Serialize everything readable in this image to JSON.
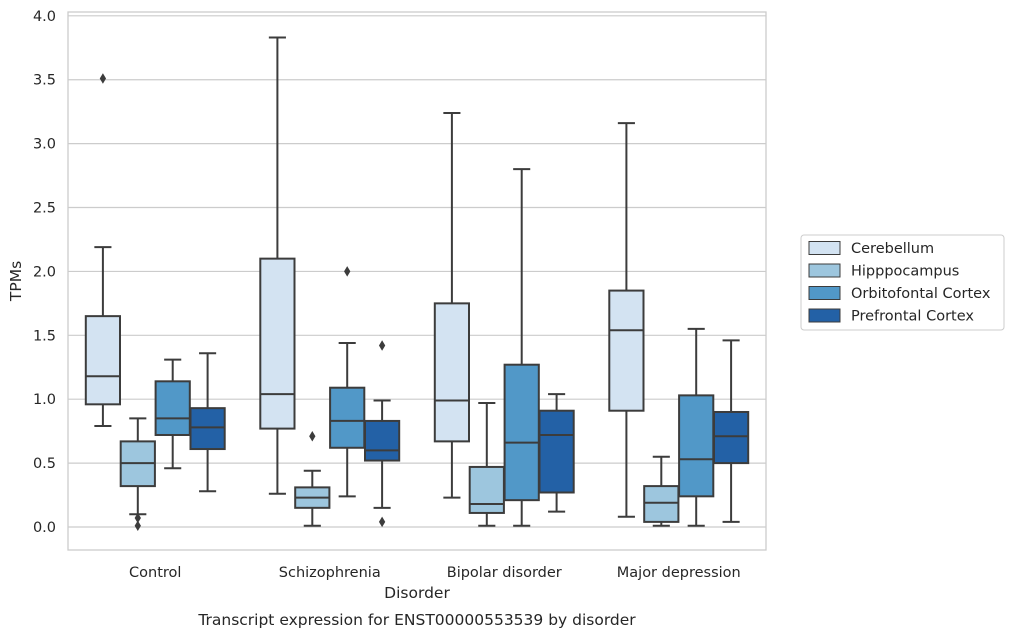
{
  "chart_data": {
    "type": "box",
    "title": "",
    "caption": "Transcript expression for ENST00000553539 by disorder",
    "xlabel": "Disorder",
    "ylabel": "TPMs",
    "ylim": [
      -0.18,
      4.03
    ],
    "yticks": [
      "0.0",
      "0.5",
      "1.0",
      "1.5",
      "2.0",
      "2.5",
      "3.0",
      "3.5",
      "4.0"
    ],
    "grid": "horizontal",
    "legend_position": "outside-right",
    "categories": [
      "Control",
      "Schizophrenia",
      "Bipolar disorder",
      "Major depression"
    ],
    "series": [
      {
        "name": "Cerebellum",
        "color": "#d3e3f2",
        "boxes": [
          {
            "whislo": 0.79,
            "q1": 0.96,
            "med": 1.18,
            "q3": 1.65,
            "whishi": 2.19,
            "fliers": [
              3.51
            ]
          },
          {
            "whislo": 0.26,
            "q1": 0.77,
            "med": 1.04,
            "q3": 2.1,
            "whishi": 3.83,
            "fliers": []
          },
          {
            "whislo": 0.23,
            "q1": 0.67,
            "med": 0.99,
            "q3": 1.75,
            "whishi": 3.24,
            "fliers": []
          },
          {
            "whislo": 0.08,
            "q1": 0.91,
            "med": 1.54,
            "q3": 1.85,
            "whishi": 3.16,
            "fliers": []
          }
        ]
      },
      {
        "name": "Hipppocampus",
        "color": "#9dc6de",
        "boxes": [
          {
            "whislo": 0.1,
            "q1": 0.32,
            "med": 0.5,
            "q3": 0.67,
            "whishi": 0.85,
            "fliers": [
              0.07,
              0.01
            ]
          },
          {
            "whislo": 0.01,
            "q1": 0.15,
            "med": 0.23,
            "q3": 0.31,
            "whishi": 0.44,
            "fliers": [
              0.71
            ]
          },
          {
            "whislo": 0.01,
            "q1": 0.11,
            "med": 0.18,
            "q3": 0.47,
            "whishi": 0.97,
            "fliers": []
          },
          {
            "whislo": 0.01,
            "q1": 0.04,
            "med": 0.19,
            "q3": 0.32,
            "whishi": 0.55,
            "fliers": []
          }
        ]
      },
      {
        "name": "Orbitofontal Cortex",
        "color": "#5198c8",
        "boxes": [
          {
            "whislo": 0.46,
            "q1": 0.72,
            "med": 0.85,
            "q3": 1.14,
            "whishi": 1.31,
            "fliers": []
          },
          {
            "whislo": 0.24,
            "q1": 0.62,
            "med": 0.83,
            "q3": 1.09,
            "whishi": 1.44,
            "fliers": [
              2.0
            ]
          },
          {
            "whislo": 0.01,
            "q1": 0.21,
            "med": 0.66,
            "q3": 1.27,
            "whishi": 2.8,
            "fliers": []
          },
          {
            "whislo": 0.01,
            "q1": 0.24,
            "med": 0.53,
            "q3": 1.03,
            "whishi": 1.55,
            "fliers": []
          }
        ]
      },
      {
        "name": "Prefrontal Cortex",
        "color": "#2361a6",
        "boxes": [
          {
            "whislo": 0.28,
            "q1": 0.61,
            "med": 0.78,
            "q3": 0.93,
            "whishi": 1.36,
            "fliers": []
          },
          {
            "whislo": 0.15,
            "q1": 0.52,
            "med": 0.6,
            "q3": 0.83,
            "whishi": 0.99,
            "fliers": [
              1.42,
              0.04
            ]
          },
          {
            "whislo": 0.12,
            "q1": 0.27,
            "med": 0.72,
            "q3": 0.91,
            "whishi": 1.04,
            "fliers": []
          },
          {
            "whislo": 0.04,
            "q1": 0.5,
            "med": 0.71,
            "q3": 0.9,
            "whishi": 1.46,
            "fliers": []
          }
        ]
      }
    ]
  }
}
